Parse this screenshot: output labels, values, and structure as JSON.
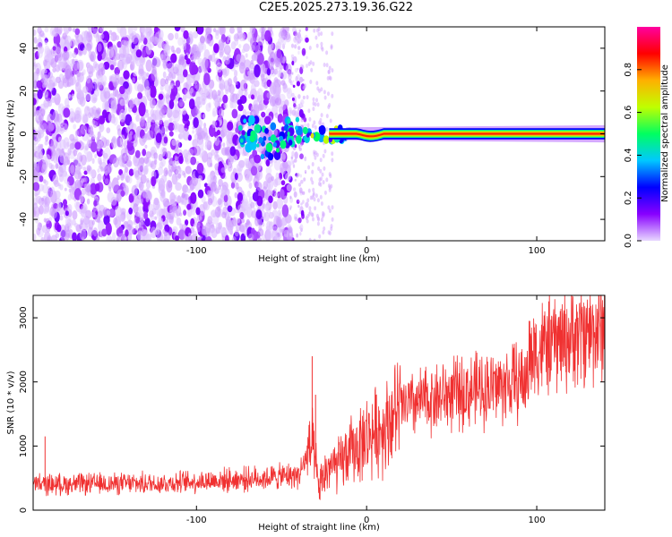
{
  "title": "C2E5.2025.273.19.36.G22",
  "chart_data": [
    {
      "type": "heatmap",
      "name": "spectrogram",
      "xlabel": "Height of straight line (km)",
      "ylabel": "Frequency (Hz)",
      "xlim": [
        -196,
        140
      ],
      "ylim": [
        -50,
        50
      ],
      "x_ticks": [
        -100,
        0,
        100
      ],
      "x_tick_labels": [
        "-100",
        "0",
        "100"
      ],
      "y_ticks": [
        -40,
        -20,
        0,
        20,
        40
      ],
      "y_tick_labels": [
        "-40",
        "-20",
        "0",
        "20",
        "40"
      ],
      "colorbar": {
        "label": "Normalized spectral amplitude",
        "range": [
          0,
          1
        ],
        "ticks": [
          0,
          0.2,
          0.4,
          0.6,
          0.8
        ],
        "tick_labels": [
          "0.0",
          "0.2",
          "0.4",
          "0.6",
          "0.8"
        ],
        "colors": [
          "#e8d8ff",
          "#8800ff",
          "#0000ff",
          "#00c8ff",
          "#00ff60",
          "#c0ff00",
          "#ffb000",
          "#ff0000",
          "#ff00a0"
        ]
      },
      "features": {
        "noise_region_x": [
          -196,
          -35
        ],
        "tone_frequency_hz": 0,
        "tone_start_x": -75,
        "tone_peak_amplitude": 0.85
      }
    },
    {
      "type": "line",
      "name": "snr",
      "xlabel": "Height of straight line (km)",
      "ylabel": "SNR (10 * v/v)",
      "xlim": [
        -196,
        140
      ],
      "ylim": [
        0,
        3350
      ],
      "x_ticks": [
        -100,
        0,
        100
      ],
      "x_tick_labels": [
        "-100",
        "0",
        "100"
      ],
      "y_ticks": [
        0,
        1000,
        2000,
        3000
      ],
      "y_tick_labels": [
        "0",
        "1000",
        "2000",
        "3000"
      ],
      "color": "#f03030",
      "trend": {
        "x": [
          -196,
          -120,
          -60,
          -40,
          -32,
          -28,
          -22,
          -18,
          -10,
          -5,
          0,
          10,
          20,
          40,
          60,
          80,
          95,
          95.5,
          110,
          125,
          140
        ],
        "y": [
          400,
          420,
          500,
          550,
          1000,
          350,
          700,
          650,
          900,
          1000,
          1150,
          1300,
          1600,
          1750,
          1850,
          1950,
          2050,
          2450,
          2600,
          2750,
          2850
        ]
      },
      "spikes": {
        "x": [
          -189,
          -32,
          -30
        ],
        "y": [
          1150,
          2400,
          1800
        ]
      }
    }
  ]
}
